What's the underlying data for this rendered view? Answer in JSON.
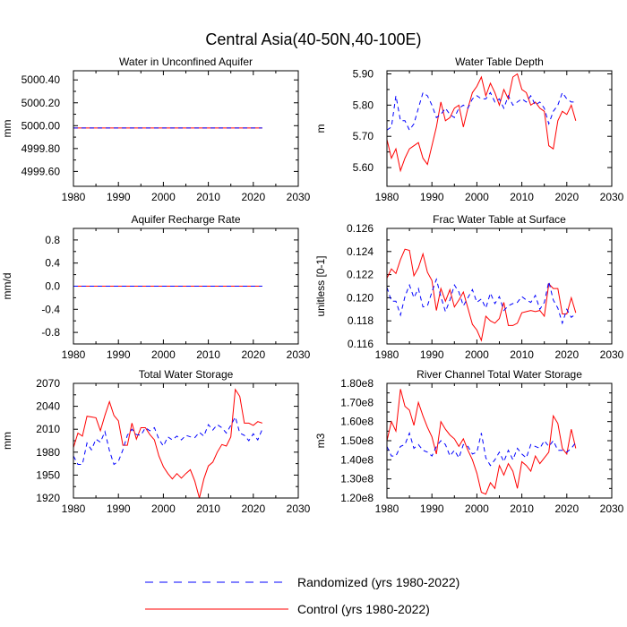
{
  "figure_title": "Central Asia(40-50N,40-100E)",
  "colors": {
    "control": "#ff0000",
    "randomized": "#0000ff",
    "axis": "#000000"
  },
  "legend": {
    "randomized_label": "Randomized (yrs 1980-2022)",
    "control_label": "Control (yrs 1980-2022)"
  },
  "chart_data": [
    {
      "type": "line",
      "title": "Water in Unconfined Aquifer",
      "ylabel": "mm",
      "xlim": [
        1980,
        2030
      ],
      "ylim": [
        4999.47,
        5000.48
      ],
      "xticks": [
        1980,
        1990,
        2000,
        2010,
        2020,
        2030
      ],
      "xtick_labels": [
        "1980",
        "1990",
        "2000",
        "2010",
        "2020",
        "2030"
      ],
      "yticks": [
        4999.6,
        4999.8,
        5000.0,
        5000.2,
        5000.4
      ],
      "ytick_labels": [
        "4999.60",
        "4999.80",
        "5000.00",
        "5000.20",
        "5000.40"
      ],
      "x": [
        1980,
        2022
      ],
      "series": [
        {
          "name": "Control",
          "values": [
            4999.98,
            4999.98
          ]
        },
        {
          "name": "Randomized",
          "values": [
            4999.98,
            4999.98
          ]
        }
      ]
    },
    {
      "type": "line",
      "title": "Water Table Depth",
      "ylabel": "m",
      "xlim": [
        1980,
        2030
      ],
      "ylim": [
        5.54,
        5.91
      ],
      "xticks": [
        1980,
        1990,
        2000,
        2010,
        2020,
        2030
      ],
      "xtick_labels": [
        "1980",
        "1990",
        "2000",
        "2010",
        "2020",
        "2030"
      ],
      "yticks": [
        5.6,
        5.7,
        5.8,
        5.9
      ],
      "ytick_labels": [
        "5.60",
        "5.70",
        "5.80",
        "5.90"
      ],
      "x": [
        1980,
        1981,
        1982,
        1983,
        1984,
        1985,
        1986,
        1987,
        1988,
        1989,
        1990,
        1991,
        1992,
        1993,
        1994,
        1995,
        1996,
        1997,
        1998,
        1999,
        2000,
        2001,
        2002,
        2003,
        2004,
        2005,
        2006,
        2007,
        2008,
        2009,
        2010,
        2011,
        2012,
        2013,
        2014,
        2015,
        2016,
        2017,
        2018,
        2019,
        2020,
        2021,
        2022
      ],
      "series": [
        {
          "name": "Control",
          "values": [
            5.69,
            5.63,
            5.66,
            5.59,
            5.63,
            5.66,
            5.67,
            5.68,
            5.63,
            5.61,
            5.67,
            5.73,
            5.81,
            5.75,
            5.76,
            5.79,
            5.8,
            5.73,
            5.79,
            5.84,
            5.86,
            5.89,
            5.83,
            5.87,
            5.84,
            5.8,
            5.85,
            5.82,
            5.89,
            5.9,
            5.85,
            5.84,
            5.8,
            5.81,
            5.79,
            5.78,
            5.67,
            5.66,
            5.75,
            5.78,
            5.77,
            5.8,
            5.75
          ]
        },
        {
          "name": "Randomized",
          "values": [
            5.72,
            5.73,
            5.83,
            5.75,
            5.75,
            5.72,
            5.74,
            5.79,
            5.84,
            5.83,
            5.8,
            5.76,
            5.77,
            5.79,
            5.77,
            5.76,
            5.79,
            5.8,
            5.79,
            5.82,
            5.83,
            5.82,
            5.82,
            5.84,
            5.81,
            5.82,
            5.79,
            5.83,
            5.8,
            5.81,
            5.82,
            5.81,
            5.83,
            5.8,
            5.81,
            5.79,
            5.74,
            5.78,
            5.8,
            5.84,
            5.82,
            5.81,
            5.81
          ]
        }
      ]
    },
    {
      "type": "line",
      "title": "Aquifer Recharge Rate",
      "ylabel": "mm/d",
      "xlim": [
        1980,
        2030
      ],
      "ylim": [
        -1.0,
        1.0
      ],
      "xticks": [
        1980,
        1990,
        2000,
        2010,
        2020,
        2030
      ],
      "xtick_labels": [
        "1980",
        "1990",
        "2000",
        "2010",
        "2020",
        "2030"
      ],
      "yticks": [
        -0.8,
        -0.4,
        0.0,
        0.4,
        0.8
      ],
      "ytick_labels": [
        "-0.8",
        "-0.4",
        "0.0",
        "0.4",
        "0.8"
      ],
      "x": [
        1980,
        2022
      ],
      "series": [
        {
          "name": "Control",
          "values": [
            0.0,
            0.0
          ]
        },
        {
          "name": "Randomized",
          "values": [
            0.0,
            0.0
          ]
        }
      ]
    },
    {
      "type": "line",
      "title": "Frac Water Table at Surface",
      "ylabel": "unitless [0-1]",
      "xlim": [
        1980,
        2030
      ],
      "ylim": [
        0.116,
        0.126
      ],
      "xticks": [
        1980,
        1990,
        2000,
        2010,
        2020,
        2030
      ],
      "xtick_labels": [
        "1980",
        "1990",
        "2000",
        "2010",
        "2020",
        "2030"
      ],
      "yticks": [
        0.116,
        0.118,
        0.12,
        0.122,
        0.124,
        0.126
      ],
      "ytick_labels": [
        "0.116",
        "0.118",
        "0.120",
        "0.122",
        "0.124",
        "0.126"
      ],
      "x": [
        1980,
        1981,
        1982,
        1983,
        1984,
        1985,
        1986,
        1987,
        1988,
        1989,
        1990,
        1991,
        1992,
        1993,
        1994,
        1995,
        1996,
        1997,
        1998,
        1999,
        2000,
        2001,
        2002,
        2003,
        2004,
        2005,
        2006,
        2007,
        2008,
        2009,
        2010,
        2011,
        2012,
        2013,
        2014,
        2015,
        2016,
        2017,
        2018,
        2019,
        2020,
        2021,
        2022
      ],
      "series": [
        {
          "name": "Control",
          "values": [
            0.1217,
            0.1225,
            0.1221,
            0.1233,
            0.1242,
            0.1241,
            0.1219,
            0.1226,
            0.1238,
            0.1222,
            0.1215,
            0.1189,
            0.1208,
            0.1197,
            0.1207,
            0.1192,
            0.1198,
            0.1205,
            0.1191,
            0.1177,
            0.1172,
            0.1163,
            0.1184,
            0.118,
            0.1178,
            0.1182,
            0.1196,
            0.1176,
            0.1176,
            0.1178,
            0.1187,
            0.1188,
            0.1189,
            0.1188,
            0.1189,
            0.1184,
            0.1212,
            0.1208,
            0.1208,
            0.1186,
            0.1186,
            0.12,
            0.1187
          ]
        },
        {
          "name": "Randomized",
          "values": [
            0.1209,
            0.1197,
            0.1197,
            0.1185,
            0.1201,
            0.1211,
            0.12,
            0.1208,
            0.1192,
            0.1193,
            0.1205,
            0.1216,
            0.1201,
            0.1188,
            0.1198,
            0.1211,
            0.1205,
            0.1193,
            0.12,
            0.1207,
            0.1196,
            0.1199,
            0.1191,
            0.1204,
            0.1195,
            0.1201,
            0.1189,
            0.1193,
            0.1195,
            0.1196,
            0.1201,
            0.1198,
            0.1196,
            0.1202,
            0.119,
            0.1196,
            0.1214,
            0.1198,
            0.1191,
            0.1178,
            0.119,
            0.1183,
            0.1186
          ]
        }
      ]
    },
    {
      "type": "line",
      "title": "Total Water Storage",
      "ylabel": "mm",
      "xlim": [
        1980,
        2030
      ],
      "ylim": [
        1920,
        2070
      ],
      "xticks": [
        1980,
        1990,
        2000,
        2010,
        2020,
        2030
      ],
      "xtick_labels": [
        "1980",
        "1990",
        "2000",
        "2010",
        "2020",
        "2030"
      ],
      "yticks": [
        1920,
        1950,
        1980,
        2010,
        2040,
        2070
      ],
      "ytick_labels": [
        "1920",
        "1950",
        "1980",
        "2010",
        "2040",
        "2070"
      ],
      "x": [
        1980,
        1981,
        1982,
        1983,
        1984,
        1985,
        1986,
        1987,
        1988,
        1989,
        1990,
        1991,
        1992,
        1993,
        1994,
        1995,
        1996,
        1997,
        1998,
        1999,
        2000,
        2001,
        2002,
        2003,
        2004,
        2005,
        2006,
        2007,
        2008,
        2009,
        2010,
        2011,
        2012,
        2013,
        2014,
        2015,
        2016,
        2017,
        2018,
        2019,
        2020,
        2021,
        2022
      ],
      "series": [
        {
          "name": "Control",
          "values": [
            1986,
            2005,
            2001,
            2027,
            2026,
            2025,
            2008,
            2028,
            2046,
            2028,
            2021,
            1989,
            1989,
            2018,
            1997,
            2012,
            2012,
            2003,
            1996,
            1975,
            1961,
            1952,
            1945,
            1952,
            1946,
            1952,
            1957,
            1942,
            1920,
            1945,
            1962,
            1967,
            1980,
            1990,
            1988,
            2000,
            2062,
            2053,
            2018,
            2018,
            2015,
            2020,
            2018
          ]
        },
        {
          "name": "Randomized",
          "values": [
            1975,
            1964,
            1964,
            1992,
            1983,
            1997,
            1993,
            2007,
            1982,
            1964,
            1968,
            1983,
            2002,
            2010,
            2003,
            2002,
            2012,
            2008,
            2012,
            1997,
            1988,
            2000,
            1996,
            2001,
            1996,
            2002,
            2000,
            1999,
            2006,
            2001,
            2016,
            2009,
            2016,
            2012,
            2005,
            2015,
            2026,
            2005,
            2002,
            1995,
            2004,
            1996,
            2010
          ]
        }
      ]
    },
    {
      "type": "line",
      "title": "River Channel Total Water Storage",
      "ylabel": "m3",
      "xlim": [
        1980,
        2030
      ],
      "ylim": [
        120000000.0,
        180000000.0
      ],
      "xticks": [
        1980,
        1990,
        2000,
        2010,
        2020,
        2030
      ],
      "xtick_labels": [
        "1980",
        "1990",
        "2000",
        "2010",
        "2020",
        "2030"
      ],
      "yticks": [
        120000000.0,
        130000000.0,
        140000000.0,
        150000000.0,
        160000000.0,
        170000000.0,
        180000000.0
      ],
      "ytick_labels": [
        "1.20e8",
        "1.30e8",
        "1.40e8",
        "1.50e8",
        "1.60e8",
        "1.70e8",
        "1.80e8"
      ],
      "x": [
        1980,
        1981,
        1982,
        1983,
        1984,
        1985,
        1986,
        1987,
        1988,
        1989,
        1990,
        1991,
        1992,
        1993,
        1994,
        1995,
        1996,
        1997,
        1998,
        1999,
        2000,
        2001,
        2002,
        2003,
        2004,
        2005,
        2006,
        2007,
        2008,
        2009,
        2010,
        2011,
        2012,
        2013,
        2014,
        2015,
        2016,
        2017,
        2018,
        2019,
        2020,
        2021,
        2022
      ],
      "series": [
        {
          "name": "Control",
          "values": [
            150000000.0,
            160000000.0,
            155000000.0,
            177000000.0,
            168000000.0,
            166000000.0,
            158000000.0,
            170000000.0,
            163000000.0,
            157000000.0,
            152000000.0,
            143000000.0,
            160000000.0,
            156000000.0,
            153000000.0,
            151000000.0,
            147000000.0,
            151000000.0,
            145000000.0,
            140000000.0,
            133000000.0,
            123000000.0,
            122000000.0,
            128000000.0,
            125000000.0,
            137000000.0,
            132000000.0,
            138000000.0,
            134000000.0,
            125000000.0,
            139000000.0,
            137000000.0,
            134000000.0,
            142000000.0,
            138000000.0,
            141000000.0,
            144000000.0,
            163000000.0,
            159000000.0,
            146000000.0,
            143000000.0,
            156000000.0,
            146000000.0
          ]
        },
        {
          "name": "Randomized",
          "values": [
            147000000.0,
            142000000.0,
            142000000.0,
            147000000.0,
            148000000.0,
            154000000.0,
            146000000.0,
            148000000.0,
            145000000.0,
            144000000.0,
            142000000.0,
            147000000.0,
            150000000.0,
            148000000.0,
            142000000.0,
            145000000.0,
            141000000.0,
            148000000.0,
            147000000.0,
            143000000.0,
            144000000.0,
            154000000.0,
            141000000.0,
            137000000.0,
            140000000.0,
            144000000.0,
            139000000.0,
            145000000.0,
            140000000.0,
            146000000.0,
            143000000.0,
            141000000.0,
            148000000.0,
            147000000.0,
            146000000.0,
            150000000.0,
            147000000.0,
            150000000.0,
            145000000.0,
            145000000.0,
            144000000.0,
            146000000.0,
            149000000.0
          ]
        }
      ]
    }
  ]
}
